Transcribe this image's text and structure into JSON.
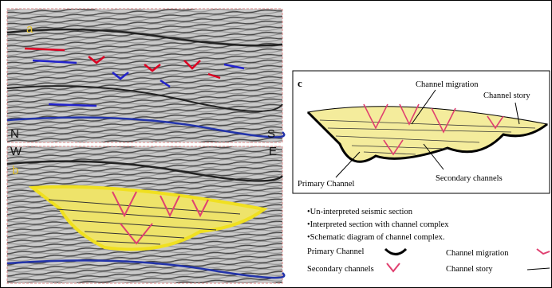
{
  "panel_a": {
    "label": "a",
    "left": "N",
    "right": "S"
  },
  "panel_b": {
    "label": "b",
    "left": "W",
    "right": "E"
  },
  "panel_c": {
    "label": "c",
    "annotations": [
      "Channel migration",
      "Channel story",
      "Primary Channel",
      "Secondary channels"
    ]
  },
  "captions": [
    "•Un-interpreted seismic section",
    "•Interpreted section with channel complex",
    "•Schematic diagram of channel complex."
  ],
  "legend": [
    "Primary Channel",
    "Channel migration",
    "Secondary channels",
    "Channel story"
  ]
}
